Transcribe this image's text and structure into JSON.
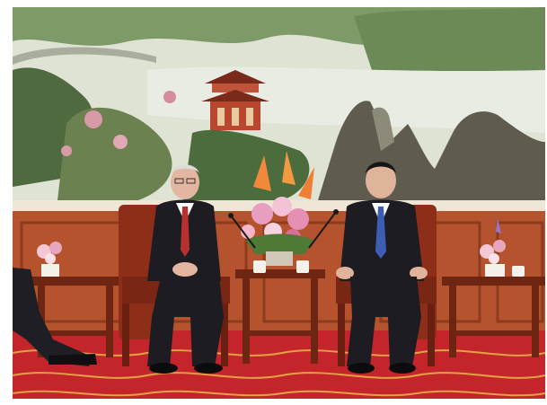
{
  "photo": {
    "colors": {
      "painting_sky": "#dde3d3",
      "painting_hills": "#6f8a5e",
      "painting_rock": "#5b5a4e",
      "wall_panel": "#b8562f",
      "wall_panel_dark": "#8c3b1e",
      "carpet": "#c4262a",
      "carpet_pattern": "#e7b84a",
      "suit": "#1c1c22",
      "tie_left": "#b7322e",
      "tie_right": "#3d5db5",
      "table": "#7a2a16",
      "flowers": "#f0a6c0"
    },
    "icons": [
      "landscape-painting",
      "pavilion",
      "flower-bouquet",
      "microphone",
      "armchair",
      "teacup"
    ]
  }
}
